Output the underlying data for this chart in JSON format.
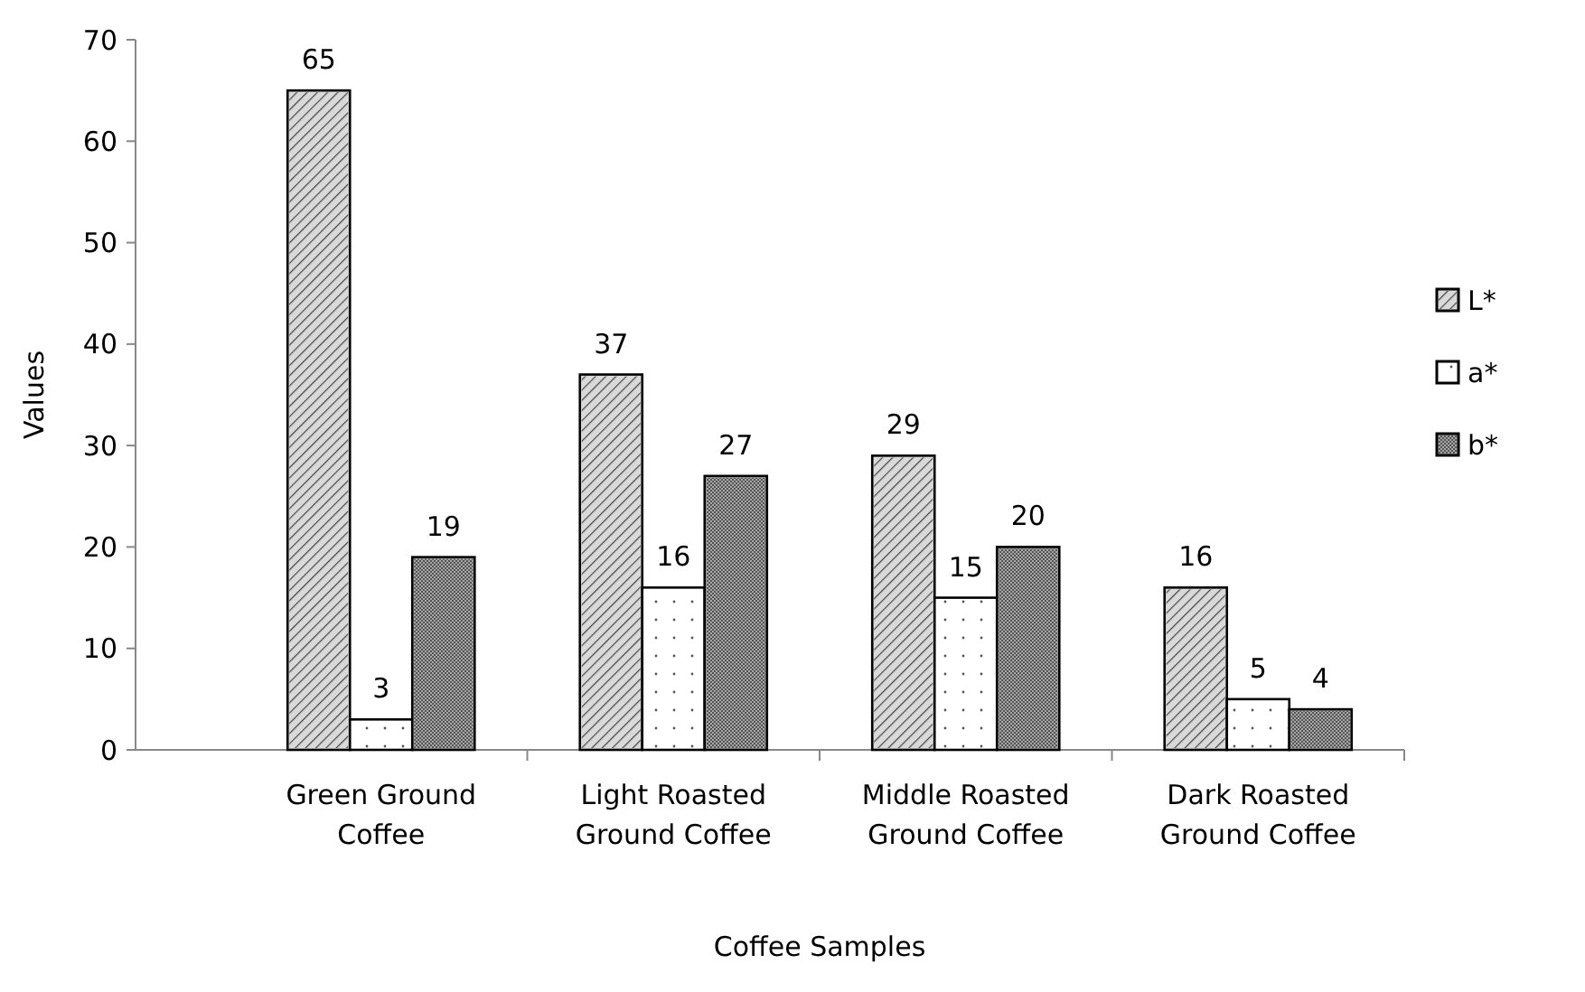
{
  "chart_data": {
    "type": "bar",
    "xlabel": "Coffee Samples",
    "ylabel": "Values",
    "categories": [
      "Green Ground Coffee",
      "Light Roasted Ground Coffee",
      "Middle Roasted Ground Coffee",
      "Dark Roasted Ground Coffee"
    ],
    "series": [
      {
        "name": "L*",
        "color": "#d9d9d9",
        "values": [
          65,
          37,
          29,
          16
        ]
      },
      {
        "name": "a*",
        "color": "#ffffff",
        "values": [
          3,
          16,
          15,
          5
        ]
      },
      {
        "name": "b*",
        "color": "#a6a6a6",
        "values": [
          19,
          27,
          20,
          4
        ]
      }
    ],
    "ylim": [
      0,
      70
    ],
    "yticks": [
      0,
      10,
      20,
      30,
      40,
      50,
      60,
      70
    ],
    "data_labels": true,
    "legend": "right",
    "grid": false
  }
}
